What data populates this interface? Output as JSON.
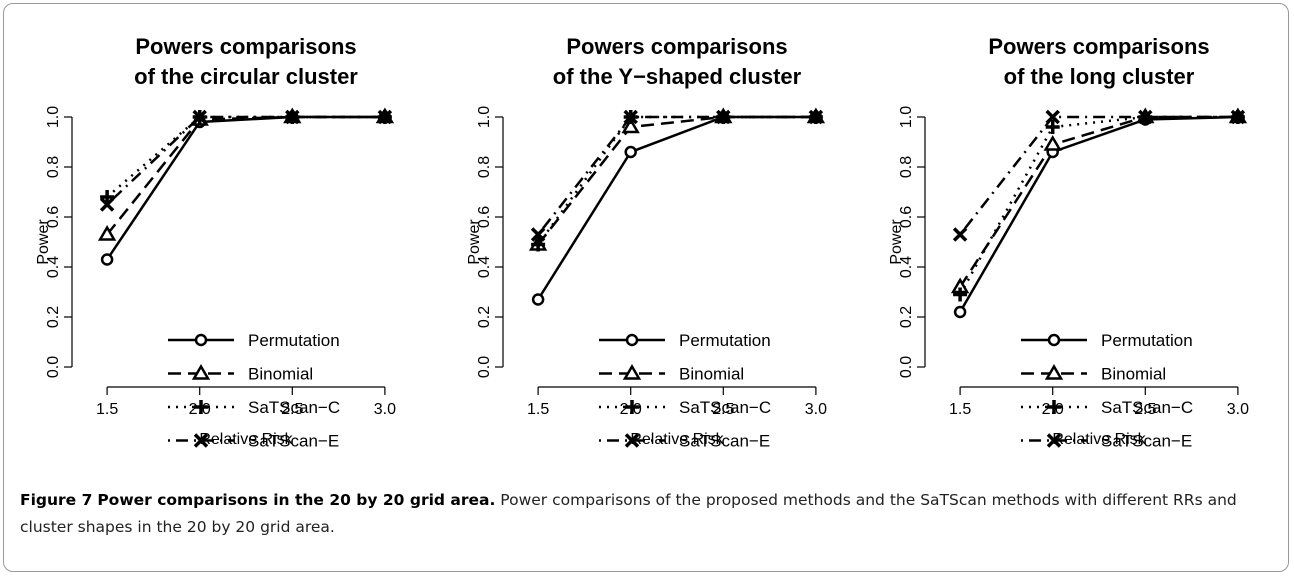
{
  "chart_data": [
    {
      "type": "line",
      "title": [
        "Powers comparisons",
        "of the circular cluster"
      ],
      "xlabel": "Relative Risk",
      "ylabel": "Power",
      "x": [
        1.5,
        2,
        2.5,
        3
      ],
      "xlim": [
        1.44,
        3.06
      ],
      "ylim": [
        -0.04,
        1.04
      ],
      "xticks": [
        1.5,
        {
          "value": 2,
          "label": "2.0"
        },
        2.5,
        {
          "value": 3,
          "label": "3.0"
        }
      ],
      "yticks": [
        {
          "value": 0,
          "label": "0.0"
        },
        0.2,
        0.4,
        0.6,
        0.8,
        {
          "value": 1,
          "label": "1.0"
        }
      ],
      "series": [
        {
          "name": "Permutation",
          "color": "#000000",
          "dash": "solid",
          "marker": "circle",
          "values": [
            0.43,
            0.98,
            1.0,
            1.0
          ]
        },
        {
          "name": "Binomial",
          "color": "#000000",
          "dash": "dashed",
          "marker": "triangle",
          "values": [
            0.53,
            0.99,
            1.0,
            1.0
          ]
        },
        {
          "name": "SaTScan−C",
          "color": "#000000",
          "dash": "dotted",
          "marker": "plus",
          "values": [
            0.68,
            1.0,
            1.0,
            1.0
          ]
        },
        {
          "name": "SaTScan−E",
          "color": "#000000",
          "dash": "dotdash",
          "marker": "cross",
          "values": [
            0.65,
            1.0,
            1.0,
            1.0
          ]
        }
      ]
    },
    {
      "type": "line",
      "title": [
        "Powers comparisons",
        "of the Y−shaped cluster"
      ],
      "xlabel": "Relative Risk",
      "ylabel": "Power",
      "x": [
        1.5,
        2,
        2.5,
        3
      ],
      "xlim": [
        1.44,
        3.06
      ],
      "ylim": [
        -0.04,
        1.04
      ],
      "xticks": [
        1.5,
        {
          "value": 2,
          "label": "2.0"
        },
        2.5,
        {
          "value": 3,
          "label": "3.0"
        }
      ],
      "yticks": [
        {
          "value": 0,
          "label": "0.0"
        },
        0.2,
        0.4,
        0.6,
        0.8,
        {
          "value": 1,
          "label": "1.0"
        }
      ],
      "series": [
        {
          "name": "Permutation",
          "color": "#000000",
          "dash": "solid",
          "marker": "circle",
          "values": [
            0.27,
            0.86,
            1.0,
            1.0
          ]
        },
        {
          "name": "Binomial",
          "color": "#000000",
          "dash": "dashed",
          "marker": "triangle",
          "values": [
            0.49,
            0.96,
            1.0,
            1.0
          ]
        },
        {
          "name": "SaTScan−C",
          "color": "#000000",
          "dash": "dotted",
          "marker": "plus",
          "values": [
            0.49,
            1.0,
            1.0,
            1.0
          ]
        },
        {
          "name": "SaTScan−E",
          "color": "#000000",
          "dash": "dotdash",
          "marker": "cross",
          "values": [
            0.53,
            1.0,
            1.0,
            1.0
          ]
        }
      ]
    },
    {
      "type": "line",
      "title": [
        "Powers comparisons",
        "of the long cluster"
      ],
      "xlabel": "Relative Risk",
      "ylabel": "Power",
      "x": [
        1.5,
        2,
        2.5,
        3
      ],
      "xlim": [
        1.44,
        3.06
      ],
      "ylim": [
        -0.04,
        1.04
      ],
      "xticks": [
        1.5,
        {
          "value": 2,
          "label": "2.0"
        },
        2.5,
        {
          "value": 3,
          "label": "3.0"
        }
      ],
      "yticks": [
        {
          "value": 0,
          "label": "0.0"
        },
        0.2,
        0.4,
        0.6,
        0.8,
        {
          "value": 1,
          "label": "1.0"
        }
      ],
      "series": [
        {
          "name": "Permutation",
          "color": "#000000",
          "dash": "solid",
          "marker": "circle",
          "values": [
            0.22,
            0.86,
            0.99,
            1.0
          ]
        },
        {
          "name": "Binomial",
          "color": "#000000",
          "dash": "dashed",
          "marker": "triangle",
          "values": [
            0.32,
            0.89,
            1.0,
            1.0
          ]
        },
        {
          "name": "SaTScan−C",
          "color": "#000000",
          "dash": "dotted",
          "marker": "plus",
          "values": [
            0.29,
            0.96,
            1.0,
            1.0
          ]
        },
        {
          "name": "SaTScan−E",
          "color": "#000000",
          "dash": "dotdash",
          "marker": "cross",
          "values": [
            0.53,
            1.0,
            1.0,
            1.0
          ]
        }
      ]
    }
  ],
  "caption": {
    "label": "Figure 7",
    "heading": "Power comparisons in the 20 by 20 grid area.",
    "text": "Power comparisons of the proposed methods and the SaTScan methods with different RRs and cluster shapes in the 20 by 20 grid area."
  }
}
